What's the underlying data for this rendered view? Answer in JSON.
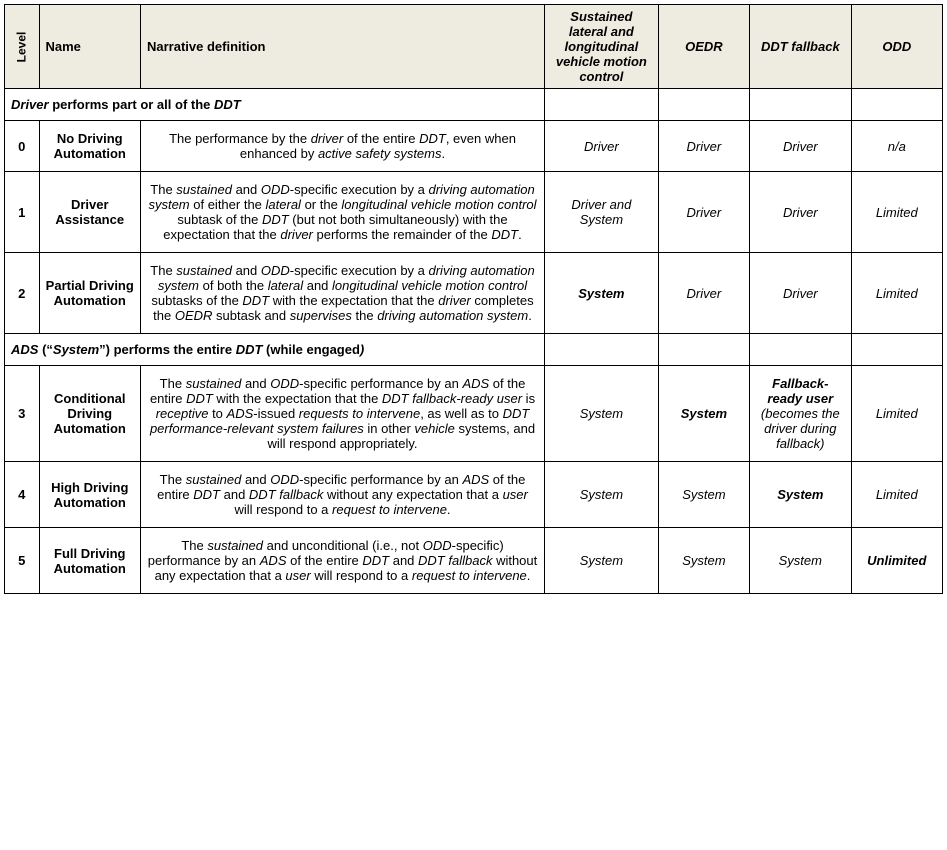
{
  "headers": {
    "level": "Level",
    "name": "Name",
    "def": "Narrative definition",
    "ddt": "Sustained lateral and longitudinal vehicle motion control",
    "oedr": "OEDR",
    "fallback": "DDT fallback",
    "odd": "ODD"
  },
  "section1_html": "<span class='ital'>Driver</span> performs part or all of the <span class='ital'>DDT</span>",
  "section2_html": "<span class='ital'>ADS</span> (“<span class='ital'>System</span>”) performs the entire <span class='ital'>DDT</span> (while engaged<span class='ital'>)</span>",
  "rows": [
    {
      "level": "0",
      "name": "No Driving Automation",
      "def_html": "The performance by the <em>driver</em> of the entire <em>DDT</em>, even when enhanced by <em>active safety systems</em>.",
      "ddt_html": "<span class='ital'>Driver</span>",
      "oedr_html": "<span class='ital'>Driver</span>",
      "fb_html": "<span class='ital'>Driver</span>",
      "odd_html": "n/a"
    },
    {
      "level": "1",
      "name": "Driver Assistance",
      "def_html": "The <em>sustained</em> and <em>ODD</em>-specific execution by a <em>driving automation system</em> of either the <em>lateral</em> or the <em>longitudinal vehicle motion control</em> subtask of the <em>DDT</em> (but not both simultaneously) with the expectation that the <em>driver</em> performs the remainder of the <em>DDT</em>.",
      "ddt_html": "<span class='ital'>Driver</span> and <span class='ital'>System</span>",
      "oedr_html": "<span class='ital'>Driver</span>",
      "fb_html": "<span class='ital'>Driver</span>",
      "odd_html": "Limited"
    },
    {
      "level": "2",
      "name": "Partial Driving Automation",
      "def_html": "The <em>sustained</em> and <em>ODD</em>-specific execution by a <em>driving automation system</em> of both the <em>lateral</em> and <em>longitudinal vehicle motion control</em> subtasks of the <em>DDT</em> with the expectation that the <em>driver</em> completes the <em>OEDR</em> subtask and <em>supervises</em> the <em>driving automation system</em>.",
      "ddt_html": "<span class='bold ital'>System</span>",
      "oedr_html": "<span class='ital'>Driver</span>",
      "fb_html": "<span class='ital'>Driver</span>",
      "odd_html": "Limited"
    },
    {
      "level": "3",
      "name": "Conditional Driving Automation",
      "def_html": "The <em>sustained</em> and <em>ODD</em>-specific performance by an <em>ADS</em> of the entire <em>DDT</em> with the expectation that the <em>DDT fallback-ready user</em> is <em>receptive</em> to <em>ADS</em>-issued <em>requests to intervene</em>, as well as to <em>DDT performance-relevant system failures</em> in other <em>vehicle</em> systems, and will respond appropriately.",
      "ddt_html": "<span class='ital'>System</span>",
      "oedr_html": "<span class='bold ital'>System</span>",
      "fb_html": "<span class='bold ital'>Fallback-ready user</span> <span class='ital'>(becomes the driver during fallback)</span>",
      "odd_html": "Limited"
    },
    {
      "level": "4",
      "name": "High Driving Automation",
      "def_html": "The <em>sustained</em> and <em>ODD</em>-specific performance by an <em>ADS</em> of the entire <em>DDT</em> and <em>DDT fallback</em> without any expectation that a <em>user</em> will respond to a <em>request to intervene</em>.",
      "ddt_html": "<span class='ital'>System</span>",
      "oedr_html": "<span class='ital'>System</span>",
      "fb_html": "<span class='bold ital'>System</span>",
      "odd_html": "Limited"
    },
    {
      "level": "5",
      "name": "Full Driving Automation",
      "def_html": "The <em>sustained</em> and unconditional (i.e., not <em>ODD</em>-specific) performance by an <em>ADS</em> of the entire <em>DDT</em> and <em>DDT fallback</em> without any expectation that a <em>user</em> will respond to a <em>request to intervene</em>.",
      "ddt_html": "<span class='ital'>System</span>",
      "oedr_html": "<span class='ital'>System</span>",
      "fb_html": "<span class='ital'>System</span>",
      "odd_html": "<span class='bold'>Unlimited</span>"
    }
  ]
}
